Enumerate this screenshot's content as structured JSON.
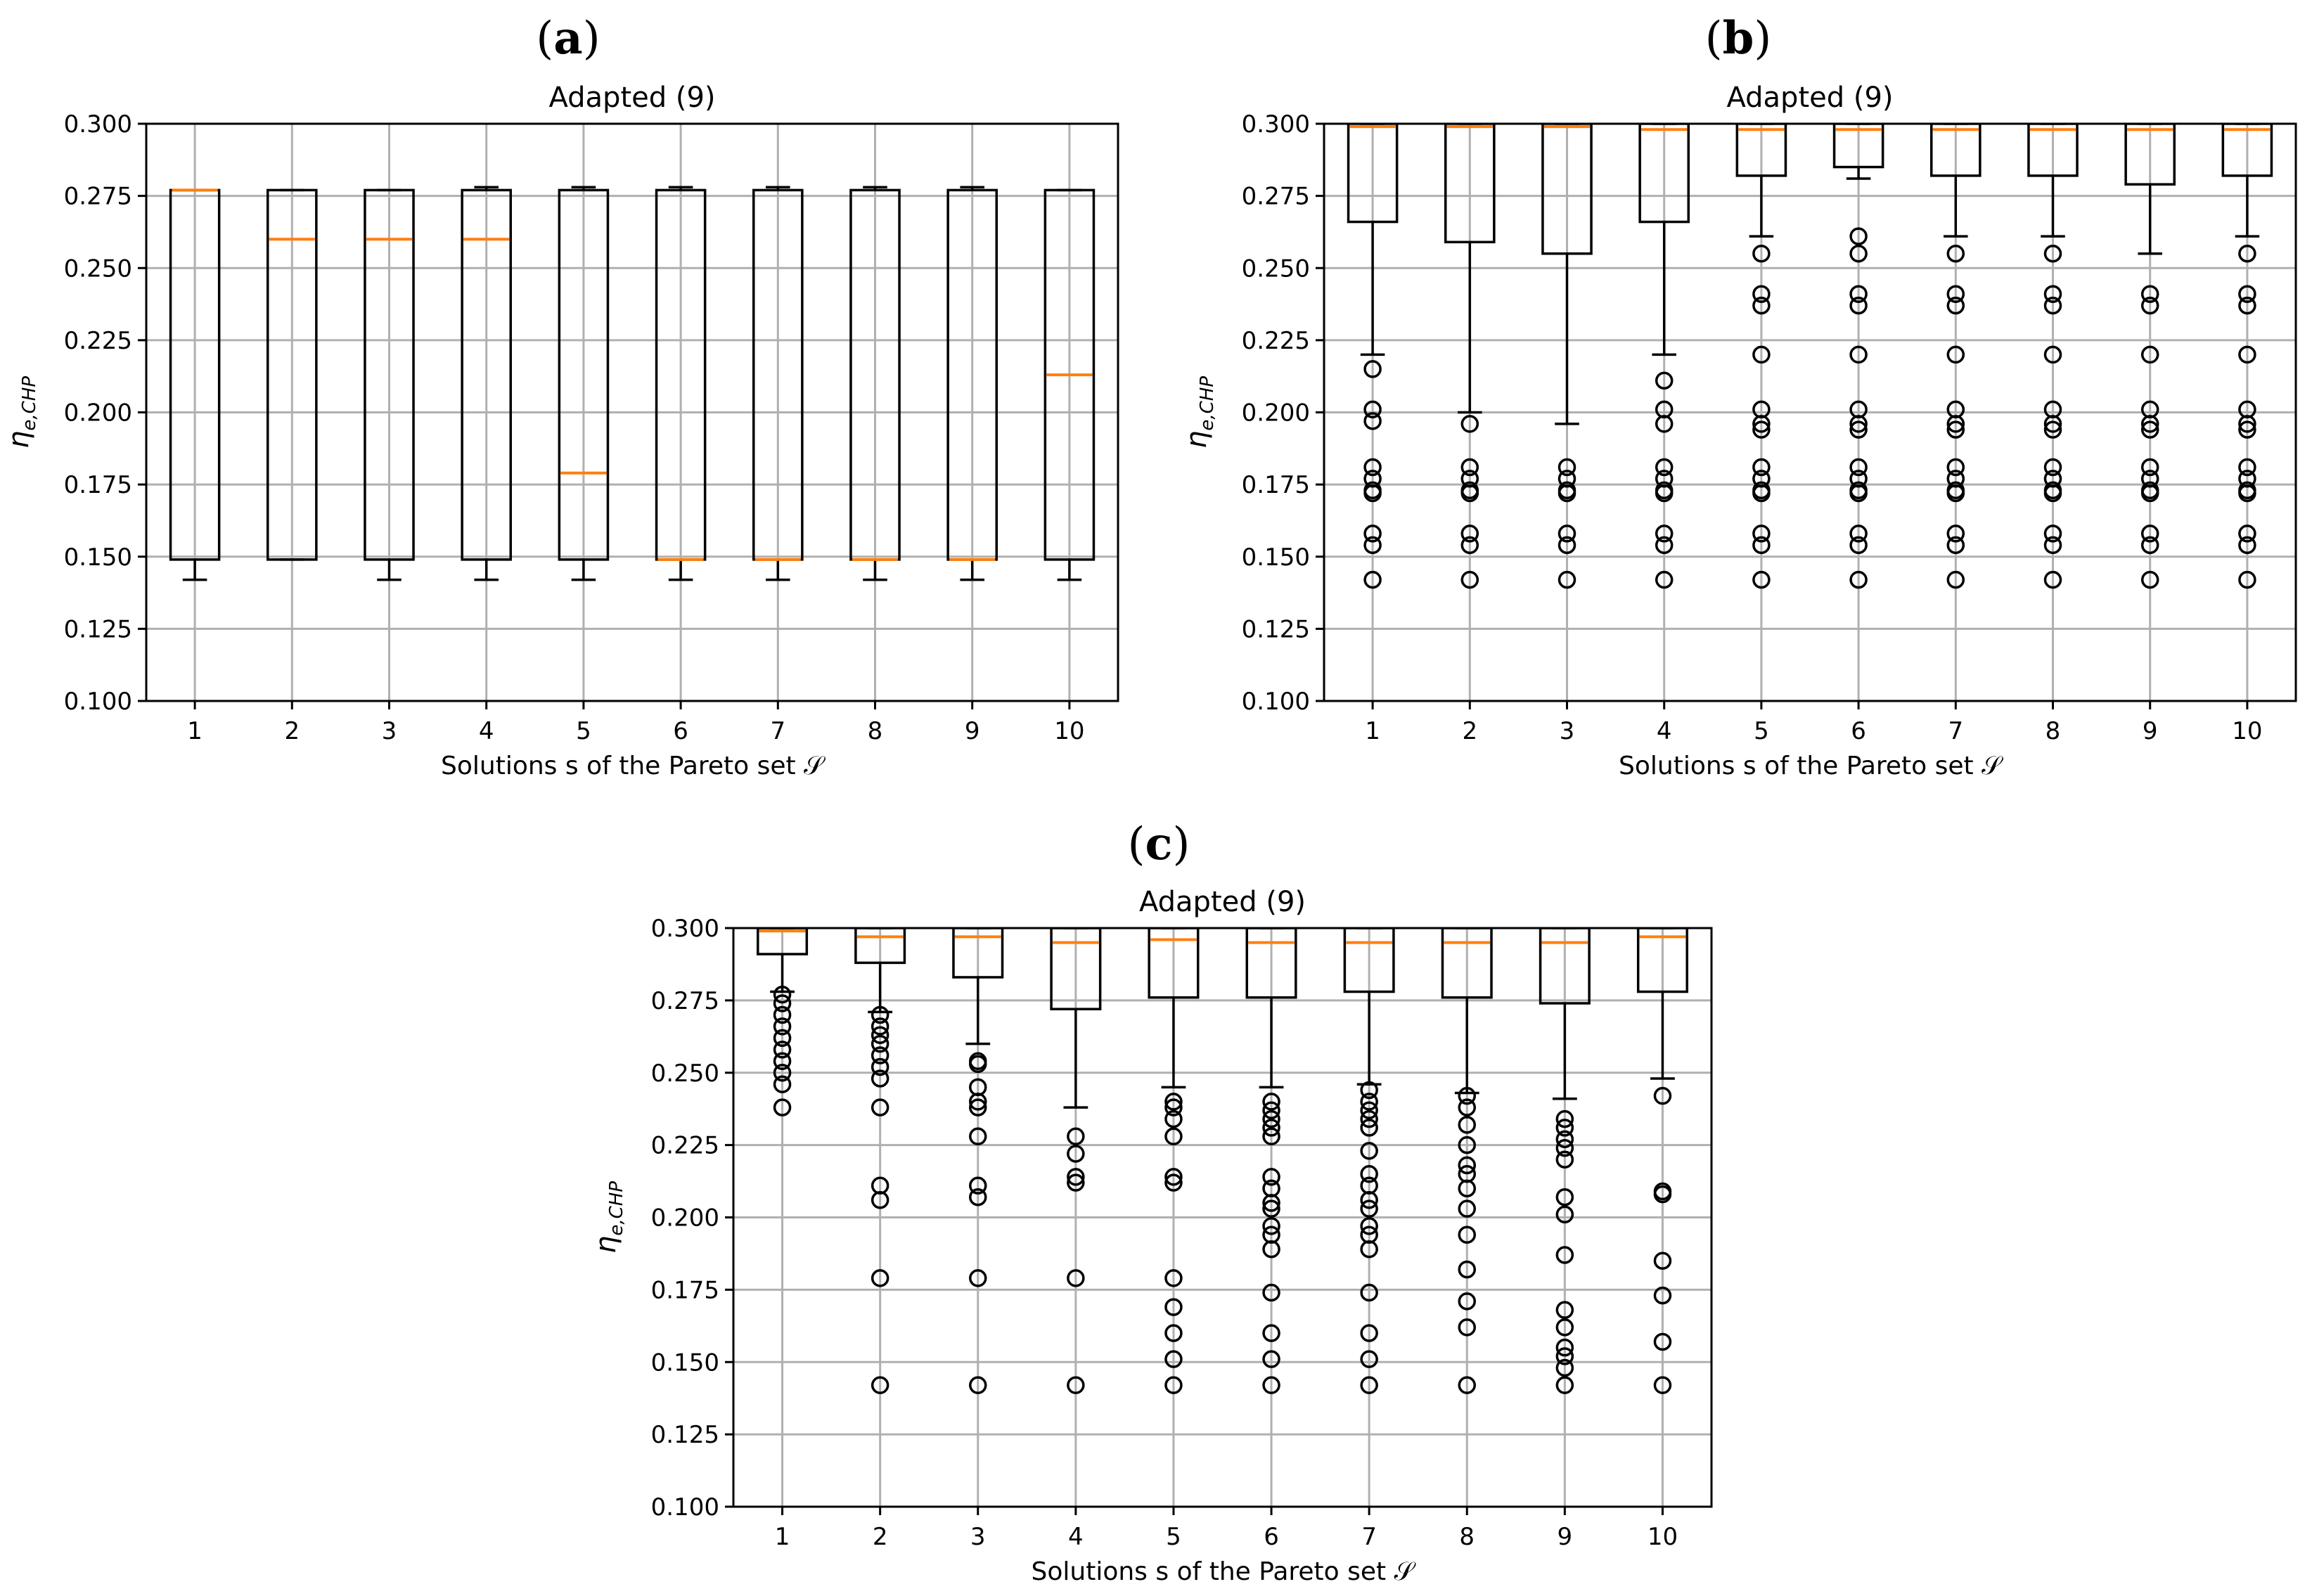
{
  "figure": {
    "panels": [
      {
        "label_open": "(",
        "label_letter": "a",
        "label_close": ")"
      },
      {
        "label_open": "(",
        "label_letter": "b",
        "label_close": ")"
      },
      {
        "label_open": "(",
        "label_letter": "c",
        "label_close": ")"
      }
    ]
  },
  "chart_data": [
    {
      "type": "box",
      "panel": "a",
      "title": "Adapted (9)",
      "xlabel": "Solutions s of the Pareto set 𝒮",
      "ylabel": "η",
      "ylabel_sub": "e,CHP",
      "ylim": [
        0.1,
        0.3
      ],
      "yticks": [
        "0.100",
        "0.125",
        "0.150",
        "0.175",
        "0.200",
        "0.225",
        "0.250",
        "0.275",
        "0.300"
      ],
      "categories": [
        "1",
        "2",
        "3",
        "4",
        "5",
        "6",
        "7",
        "8",
        "9",
        "10"
      ],
      "grid": true,
      "boxes": [
        {
          "whislo": 0.142,
          "q1": 0.149,
          "med": 0.277,
          "q3": 0.277,
          "whishi": 0.277,
          "fliers": []
        },
        {
          "whislo": 0.149,
          "q1": 0.149,
          "med": 0.26,
          "q3": 0.277,
          "whishi": 0.277,
          "fliers": []
        },
        {
          "whislo": 0.142,
          "q1": 0.149,
          "med": 0.26,
          "q3": 0.277,
          "whishi": 0.277,
          "fliers": []
        },
        {
          "whislo": 0.142,
          "q1": 0.149,
          "med": 0.26,
          "q3": 0.277,
          "whishi": 0.278,
          "fliers": []
        },
        {
          "whislo": 0.142,
          "q1": 0.149,
          "med": 0.179,
          "q3": 0.277,
          "whishi": 0.278,
          "fliers": []
        },
        {
          "whislo": 0.142,
          "q1": 0.149,
          "med": 0.149,
          "q3": 0.277,
          "whishi": 0.278,
          "fliers": []
        },
        {
          "whislo": 0.142,
          "q1": 0.149,
          "med": 0.149,
          "q3": 0.277,
          "whishi": 0.278,
          "fliers": []
        },
        {
          "whislo": 0.142,
          "q1": 0.149,
          "med": 0.149,
          "q3": 0.277,
          "whishi": 0.278,
          "fliers": []
        },
        {
          "whislo": 0.142,
          "q1": 0.149,
          "med": 0.149,
          "q3": 0.277,
          "whishi": 0.278,
          "fliers": []
        },
        {
          "whislo": 0.142,
          "q1": 0.149,
          "med": 0.213,
          "q3": 0.277,
          "whishi": 0.277,
          "fliers": []
        }
      ]
    },
    {
      "type": "box",
      "panel": "b",
      "title": "Adapted (9)",
      "xlabel": "Solutions s of the Pareto set 𝒮",
      "ylabel": "η",
      "ylabel_sub": "e,CHP",
      "ylim": [
        0.1,
        0.3
      ],
      "yticks": [
        "0.100",
        "0.125",
        "0.150",
        "0.175",
        "0.200",
        "0.225",
        "0.250",
        "0.275",
        "0.300"
      ],
      "categories": [
        "1",
        "2",
        "3",
        "4",
        "5",
        "6",
        "7",
        "8",
        "9",
        "10"
      ],
      "grid": true,
      "boxes": [
        {
          "whislo": 0.22,
          "q1": 0.266,
          "med": 0.299,
          "q3": 0.3,
          "whishi": 0.3,
          "fliers": [
            0.215,
            0.201,
            0.197,
            0.181,
            0.177,
            0.173,
            0.172,
            0.158,
            0.154,
            0.142
          ]
        },
        {
          "whislo": 0.2,
          "q1": 0.259,
          "med": 0.299,
          "q3": 0.3,
          "whishi": 0.3,
          "fliers": [
            0.196,
            0.181,
            0.177,
            0.173,
            0.172,
            0.158,
            0.154,
            0.142
          ]
        },
        {
          "whislo": 0.196,
          "q1": 0.255,
          "med": 0.299,
          "q3": 0.3,
          "whishi": 0.3,
          "fliers": [
            0.181,
            0.177,
            0.173,
            0.172,
            0.158,
            0.154,
            0.142
          ]
        },
        {
          "whislo": 0.22,
          "q1": 0.266,
          "med": 0.298,
          "q3": 0.3,
          "whishi": 0.3,
          "fliers": [
            0.211,
            0.201,
            0.196,
            0.181,
            0.177,
            0.173,
            0.172,
            0.158,
            0.154,
            0.142
          ]
        },
        {
          "whislo": 0.261,
          "q1": 0.282,
          "med": 0.298,
          "q3": 0.3,
          "whishi": 0.3,
          "fliers": [
            0.255,
            0.241,
            0.237,
            0.22,
            0.201,
            0.196,
            0.194,
            0.181,
            0.177,
            0.173,
            0.172,
            0.158,
            0.154,
            0.142
          ]
        },
        {
          "whislo": 0.281,
          "q1": 0.285,
          "med": 0.298,
          "q3": 0.3,
          "whishi": 0.3,
          "fliers": [
            0.261,
            0.255,
            0.241,
            0.237,
            0.22,
            0.201,
            0.196,
            0.194,
            0.181,
            0.177,
            0.173,
            0.172,
            0.158,
            0.154,
            0.142
          ]
        },
        {
          "whislo": 0.261,
          "q1": 0.282,
          "med": 0.298,
          "q3": 0.3,
          "whishi": 0.3,
          "fliers": [
            0.255,
            0.241,
            0.237,
            0.22,
            0.201,
            0.196,
            0.194,
            0.181,
            0.177,
            0.173,
            0.172,
            0.158,
            0.154,
            0.142
          ]
        },
        {
          "whislo": 0.261,
          "q1": 0.282,
          "med": 0.298,
          "q3": 0.3,
          "whishi": 0.3,
          "fliers": [
            0.255,
            0.241,
            0.237,
            0.22,
            0.201,
            0.196,
            0.194,
            0.181,
            0.177,
            0.173,
            0.172,
            0.158,
            0.154,
            0.142
          ]
        },
        {
          "whislo": 0.255,
          "q1": 0.279,
          "med": 0.298,
          "q3": 0.3,
          "whishi": 0.3,
          "fliers": [
            0.241,
            0.237,
            0.22,
            0.201,
            0.196,
            0.194,
            0.181,
            0.177,
            0.173,
            0.172,
            0.158,
            0.154,
            0.142
          ]
        },
        {
          "whislo": 0.261,
          "q1": 0.282,
          "med": 0.298,
          "q3": 0.3,
          "whishi": 0.3,
          "fliers": [
            0.255,
            0.241,
            0.237,
            0.22,
            0.201,
            0.196,
            0.194,
            0.181,
            0.177,
            0.173,
            0.172,
            0.158,
            0.154,
            0.142
          ]
        }
      ]
    },
    {
      "type": "box",
      "panel": "c",
      "title": "Adapted (9)",
      "xlabel": "Solutions s of the Pareto set 𝒮",
      "ylabel": "η",
      "ylabel_sub": "e,CHP",
      "ylim": [
        0.1,
        0.3
      ],
      "yticks": [
        "0.100",
        "0.125",
        "0.150",
        "0.175",
        "0.200",
        "0.225",
        "0.250",
        "0.275",
        "0.300"
      ],
      "categories": [
        "1",
        "2",
        "3",
        "4",
        "5",
        "6",
        "7",
        "8",
        "9",
        "10"
      ],
      "grid": true,
      "boxes": [
        {
          "whislo": 0.278,
          "q1": 0.291,
          "med": 0.299,
          "q3": 0.3,
          "whishi": 0.3,
          "fliers": [
            0.277,
            0.274,
            0.27,
            0.266,
            0.262,
            0.258,
            0.254,
            0.25,
            0.246,
            0.238
          ]
        },
        {
          "whislo": 0.271,
          "q1": 0.288,
          "med": 0.297,
          "q3": 0.3,
          "whishi": 0.3,
          "fliers": [
            0.27,
            0.266,
            0.263,
            0.26,
            0.256,
            0.252,
            0.248,
            0.238,
            0.211,
            0.206,
            0.179,
            0.142
          ]
        },
        {
          "whislo": 0.26,
          "q1": 0.283,
          "med": 0.297,
          "q3": 0.3,
          "whishi": 0.3,
          "fliers": [
            0.254,
            0.253,
            0.245,
            0.24,
            0.238,
            0.228,
            0.211,
            0.207,
            0.179,
            0.142
          ]
        },
        {
          "whislo": 0.238,
          "q1": 0.272,
          "med": 0.295,
          "q3": 0.3,
          "whishi": 0.3,
          "fliers": [
            0.228,
            0.222,
            0.214,
            0.212,
            0.179,
            0.142
          ]
        },
        {
          "whislo": 0.245,
          "q1": 0.276,
          "med": 0.296,
          "q3": 0.3,
          "whishi": 0.3,
          "fliers": [
            0.24,
            0.238,
            0.234,
            0.228,
            0.214,
            0.212,
            0.179,
            0.169,
            0.16,
            0.151,
            0.142
          ]
        },
        {
          "whislo": 0.245,
          "q1": 0.276,
          "med": 0.295,
          "q3": 0.3,
          "whishi": 0.3,
          "fliers": [
            0.24,
            0.237,
            0.234,
            0.231,
            0.228,
            0.214,
            0.21,
            0.205,
            0.203,
            0.197,
            0.194,
            0.189,
            0.174,
            0.16,
            0.151,
            0.142
          ]
        },
        {
          "whislo": 0.246,
          "q1": 0.278,
          "med": 0.295,
          "q3": 0.3,
          "whishi": 0.3,
          "fliers": [
            0.244,
            0.24,
            0.237,
            0.234,
            0.231,
            0.223,
            0.215,
            0.211,
            0.206,
            0.203,
            0.197,
            0.194,
            0.189,
            0.174,
            0.16,
            0.151,
            0.142
          ]
        },
        {
          "whislo": 0.243,
          "q1": 0.276,
          "med": 0.295,
          "q3": 0.3,
          "whishi": 0.3,
          "fliers": [
            0.242,
            0.238,
            0.232,
            0.225,
            0.218,
            0.215,
            0.21,
            0.203,
            0.194,
            0.182,
            0.171,
            0.162,
            0.142
          ]
        },
        {
          "whislo": 0.241,
          "q1": 0.274,
          "med": 0.295,
          "q3": 0.3,
          "whishi": 0.3,
          "fliers": [
            0.234,
            0.231,
            0.227,
            0.224,
            0.22,
            0.207,
            0.201,
            0.187,
            0.168,
            0.162,
            0.155,
            0.152,
            0.148,
            0.142
          ]
        },
        {
          "whislo": 0.248,
          "q1": 0.278,
          "med": 0.297,
          "q3": 0.3,
          "whishi": 0.3,
          "fliers": [
            0.242,
            0.209,
            0.208,
            0.185,
            0.173,
            0.157,
            0.142
          ]
        }
      ]
    }
  ]
}
